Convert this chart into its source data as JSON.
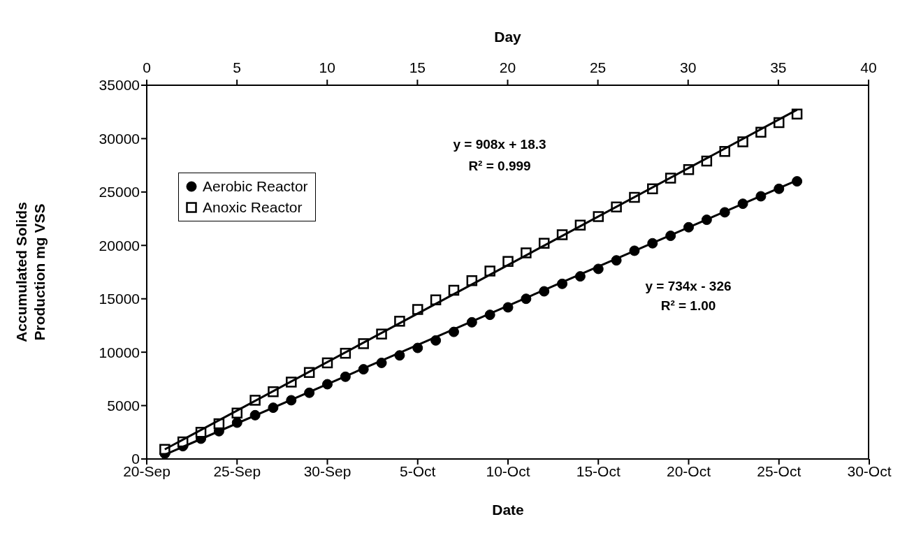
{
  "chart_data": {
    "type": "scatter",
    "xlabel": "Date",
    "x2label": "Day",
    "ylabel": "Accumulated Solids\nProduction mg VSS",
    "x": [
      "--09-21",
      "--09-22",
      "--09-23",
      "--09-24",
      "--09-25",
      "--09-26",
      "--09-27",
      "--09-28",
      "--09-29",
      "--09-30",
      "--10-01",
      "--10-02",
      "--10-03",
      "--10-04",
      "--10-05",
      "--10-06",
      "--10-07",
      "--10-08",
      "--10-09",
      "--10-10",
      "--10-11",
      "--10-12",
      "--10-13",
      "--10-14",
      "--10-15",
      "--10-16",
      "--10-17",
      "--10-18",
      "--10-19",
      "--10-20",
      "--10-21",
      "--10-22",
      "--10-23",
      "--10-24",
      "--10-25",
      "--10-26"
    ],
    "series": [
      {
        "name": "Aerobic Reactor",
        "marker": "circle",
        "color": "#000000",
        "values": [
          500,
          1200,
          1900,
          2600,
          3400,
          4100,
          4800,
          5500,
          6200,
          7000,
          7700,
          8400,
          9000,
          9700,
          10400,
          11100,
          11900,
          12800,
          13500,
          14200,
          15000,
          15700,
          16400,
          17100,
          17800,
          18600,
          19500,
          20200,
          20900,
          21700,
          22400,
          23100,
          23900,
          24600,
          25300,
          26000
        ]
      },
      {
        "name": "Anoxic Reactor",
        "marker": "square",
        "color": "#000000",
        "values": [
          900,
          1600,
          2500,
          3300,
          4300,
          5500,
          6300,
          7200,
          8100,
          9000,
          9900,
          10800,
          11700,
          12900,
          14000,
          14900,
          15800,
          16700,
          17600,
          18500,
          19300,
          20200,
          21000,
          21900,
          22700,
          23600,
          24500,
          25300,
          26300,
          27100,
          27900,
          28800,
          29700,
          30600,
          31500,
          32300
        ]
      },
      {
        "type": "line",
        "marker": "none",
        "color": "#000000",
        "x": [
          "--09-21",
          "--10-26"
        ],
        "values": [
          400,
          26100
        ]
      },
      {
        "type": "line",
        "marker": "none",
        "color": "#000000",
        "x": [
          "--09-21",
          "--10-26"
        ],
        "values": [
          900,
          32700
        ]
      }
    ],
    "xlim": [
      "--09-20",
      "--10-30"
    ],
    "xticks": [
      {
        "value": "--09-20",
        "label": "20-Sep"
      },
      {
        "value": "--09-25",
        "label": "25-Sep"
      },
      {
        "value": "--09-30",
        "label": "30-Sep"
      },
      {
        "value": "--10-05",
        "label": "5-Oct"
      },
      {
        "value": "--10-10",
        "label": "10-Oct"
      },
      {
        "value": "--10-15",
        "label": "15-Oct"
      },
      {
        "value": "--10-20",
        "label": "20-Oct"
      },
      {
        "value": "--10-25",
        "label": "25-Oct"
      },
      {
        "value": "--10-30",
        "label": "30-Oct"
      }
    ],
    "x2lim": [
      0,
      40
    ],
    "x2ticks": [
      0,
      5,
      10,
      15,
      20,
      25,
      30,
      35,
      40
    ],
    "ylim": [
      0,
      35000
    ],
    "yticks": [
      0,
      5000,
      10000,
      15000,
      20000,
      25000,
      30000,
      35000
    ],
    "annotations": [
      "y = 908x + 18.3",
      "R² = 0.999",
      "y = 734x - 326",
      "R² = 1.00"
    ],
    "legend": "top left",
    "grid": false
  }
}
